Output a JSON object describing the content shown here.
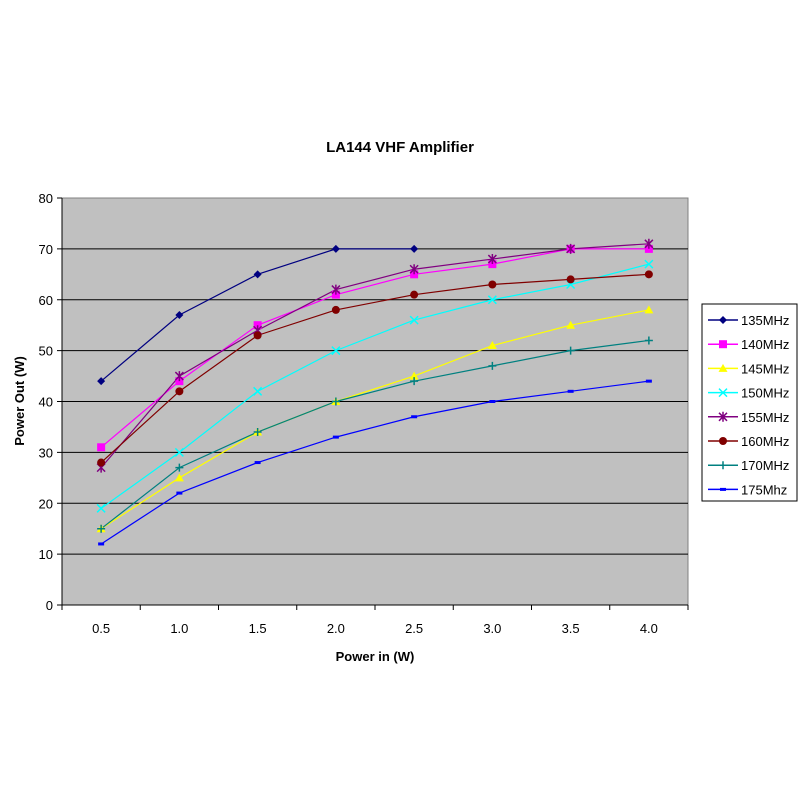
{
  "chart_data": {
    "type": "line",
    "title": "LA144 VHF Amplifier",
    "xlabel": "Power in (W)",
    "ylabel": "Power Out (W)",
    "categories": [
      "0.5",
      "1.0",
      "1.5",
      "2.0",
      "2.5",
      "3.0",
      "3.5",
      "4.0"
    ],
    "ylim": [
      0,
      80
    ],
    "yticks": [
      0,
      10,
      20,
      30,
      40,
      50,
      60,
      70,
      80
    ],
    "grid": "horizontal",
    "legend_position": "right",
    "plot_background": "#c0c0c0",
    "series": [
      {
        "name": "135MHz",
        "color": "#000080",
        "marker": "diamond",
        "values": [
          44,
          57,
          65,
          70,
          70,
          null,
          null,
          null
        ]
      },
      {
        "name": "140MHz",
        "color": "#ff00ff",
        "marker": "square",
        "values": [
          31,
          44,
          55,
          61,
          65,
          67,
          70,
          70
        ]
      },
      {
        "name": "145MHz",
        "color": "#ffff00",
        "marker": "triangle",
        "values": [
          15,
          25,
          34,
          40,
          45,
          51,
          55,
          58
        ]
      },
      {
        "name": "150MHz",
        "color": "#00ffff",
        "marker": "x",
        "values": [
          19,
          30,
          42,
          50,
          56,
          60,
          63,
          67
        ]
      },
      {
        "name": "155MHz",
        "color": "#800080",
        "marker": "star",
        "values": [
          27,
          45,
          54,
          62,
          66,
          68,
          70,
          71
        ]
      },
      {
        "name": "160MHz",
        "color": "#800000",
        "marker": "circle",
        "values": [
          28,
          42,
          53,
          58,
          61,
          63,
          64,
          65
        ]
      },
      {
        "name": "170MHz",
        "color": "#008080",
        "marker": "plus",
        "values": [
          15,
          27,
          34,
          40,
          44,
          47,
          50,
          52
        ]
      },
      {
        "name": "175Mhz",
        "color": "#0000ff",
        "marker": "dash",
        "values": [
          12,
          22,
          28,
          33,
          37,
          40,
          42,
          44
        ]
      }
    ]
  }
}
